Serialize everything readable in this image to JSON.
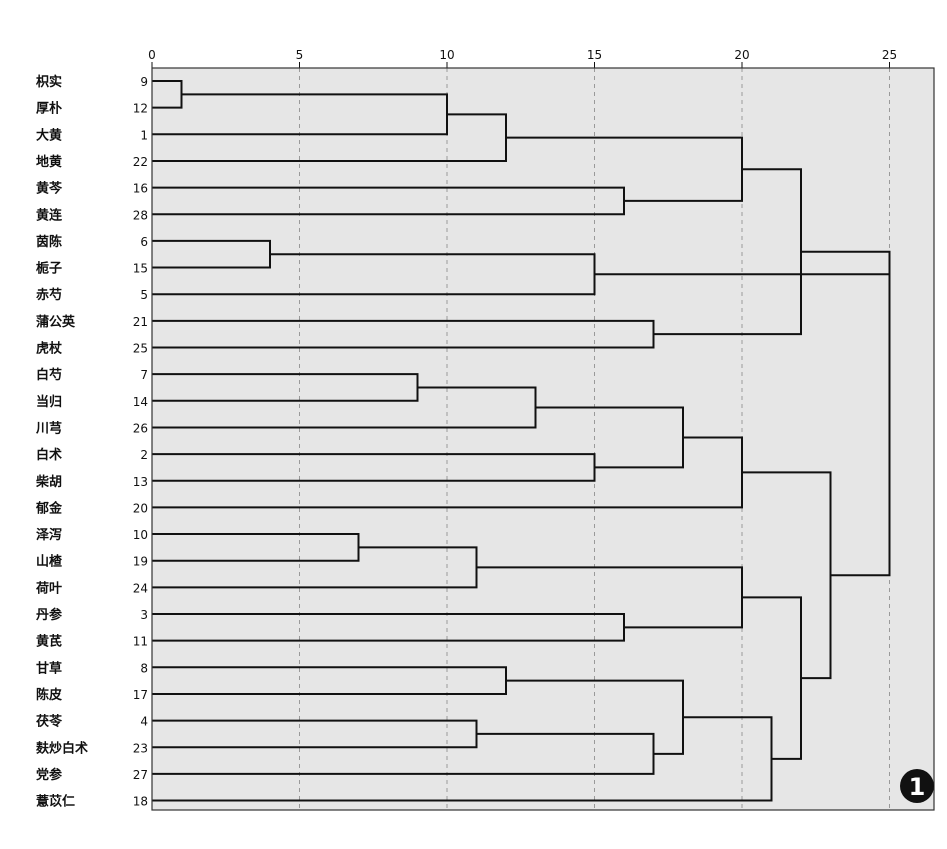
{
  "chart_data": {
    "type": "dendrogram",
    "x_ticks": [
      0,
      5,
      10,
      15,
      20,
      25
    ],
    "xlim": [
      0,
      26
    ],
    "grid": true,
    "grid_style": "dashed-vertical",
    "plot_background": "#e6e6e6",
    "line_color": "#111111",
    "leaves": [
      {
        "label": "枳实",
        "id": "9"
      },
      {
        "label": "厚朴",
        "id": "12"
      },
      {
        "label": "大黄",
        "id": "1"
      },
      {
        "label": "地黄",
        "id": "22"
      },
      {
        "label": "黄芩",
        "id": "16"
      },
      {
        "label": "黄连",
        "id": "28"
      },
      {
        "label": "茵陈",
        "id": "6"
      },
      {
        "label": "栀子",
        "id": "15"
      },
      {
        "label": "赤芍",
        "id": "5"
      },
      {
        "label": "蒲公英",
        "id": "21"
      },
      {
        "label": "虎杖",
        "id": "25"
      },
      {
        "label": "白芍",
        "id": "7"
      },
      {
        "label": "当归",
        "id": "14"
      },
      {
        "label": "川芎",
        "id": "26"
      },
      {
        "label": "白术",
        "id": "2"
      },
      {
        "label": "柴胡",
        "id": "13"
      },
      {
        "label": "郁金",
        "id": "20"
      },
      {
        "label": "泽泻",
        "id": "10"
      },
      {
        "label": "山楂",
        "id": "19"
      },
      {
        "label": "荷叶",
        "id": "24"
      },
      {
        "label": "丹参",
        "id": "3"
      },
      {
        "label": "黄芪",
        "id": "11"
      },
      {
        "label": "甘草",
        "id": "8"
      },
      {
        "label": "陈皮",
        "id": "17"
      },
      {
        "label": "茯苓",
        "id": "4"
      },
      {
        "label": "麸炒白术",
        "id": "23"
      },
      {
        "label": "党参",
        "id": "27"
      },
      {
        "label": "薏苡仁",
        "id": "18"
      }
    ],
    "merges": [
      {
        "left": "L0",
        "right": "L1",
        "height": 1
      },
      {
        "left": "M0",
        "right": "L2",
        "height": 10
      },
      {
        "left": "M1",
        "right": "L3",
        "height": 12
      },
      {
        "left": "L4",
        "right": "L5",
        "height": 16
      },
      {
        "left": "M2",
        "right": "M3",
        "height": 20
      },
      {
        "left": "L6",
        "right": "L7",
        "height": 4
      },
      {
        "left": "M5",
        "right": "L8",
        "height": 15
      },
      {
        "left": "L9",
        "right": "L10",
        "height": 17
      },
      {
        "left": "M4",
        "right": "M7",
        "height": 22
      },
      {
        "left": "M8",
        "right": "M6",
        "height": 25
      },
      {
        "left": "L11",
        "right": "L12",
        "height": 9
      },
      {
        "left": "M10",
        "right": "L13",
        "height": 13
      },
      {
        "left": "L14",
        "right": "L15",
        "height": 15
      },
      {
        "left": "M11",
        "right": "M12",
        "height": 18
      },
      {
        "left": "M13",
        "right": "L16",
        "height": 20
      },
      {
        "left": "L17",
        "right": "L18",
        "height": 7
      },
      {
        "left": "M15",
        "right": "L19",
        "height": 11
      },
      {
        "left": "L20",
        "right": "L21",
        "height": 16
      },
      {
        "left": "M16",
        "right": "M17",
        "height": 20
      },
      {
        "left": "L22",
        "right": "L23",
        "height": 12
      },
      {
        "left": "L24",
        "right": "L25",
        "height": 11
      },
      {
        "left": "M20",
        "right": "L26",
        "height": 17
      },
      {
        "left": "M19",
        "right": "M21",
        "height": 18
      },
      {
        "left": "M22",
        "right": "L27",
        "height": 21
      },
      {
        "left": "M18",
        "right": "M23",
        "height": 22
      },
      {
        "left": "M14",
        "right": "M24",
        "height": 23
      },
      {
        "left": "M9",
        "right": "M25",
        "height": 25
      }
    ]
  },
  "badge": {
    "text": "1"
  }
}
